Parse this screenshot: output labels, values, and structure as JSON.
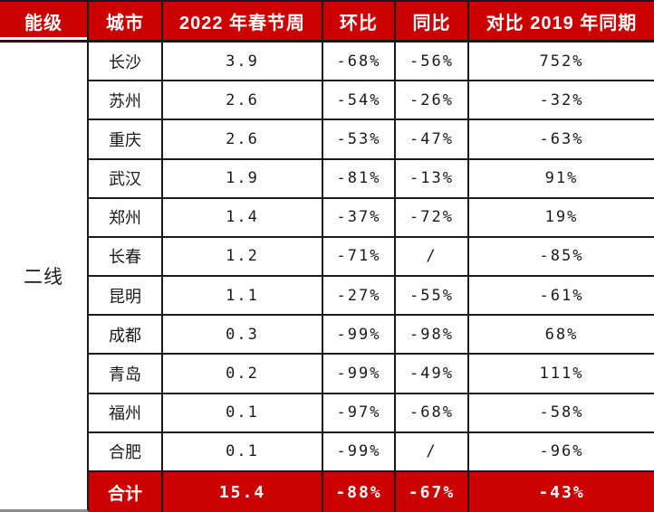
{
  "table": {
    "header": {
      "tier": "能级",
      "city": "城市",
      "value": "2022 年春节周",
      "mom": "环比",
      "yoy": "同比",
      "vs2019": "对比 2019 年同期"
    },
    "tier_label": "二线",
    "rows": [
      {
        "city": "长沙",
        "value": "3.9",
        "mom": "-68%",
        "yoy": "-56%",
        "vs2019": "752%"
      },
      {
        "city": "苏州",
        "value": "2.6",
        "mom": "-54%",
        "yoy": "-26%",
        "vs2019": "-32%"
      },
      {
        "city": "重庆",
        "value": "2.6",
        "mom": "-53%",
        "yoy": "-47%",
        "vs2019": "-63%"
      },
      {
        "city": "武汉",
        "value": "1.9",
        "mom": "-81%",
        "yoy": "-13%",
        "vs2019": "91%"
      },
      {
        "city": "郑州",
        "value": "1.4",
        "mom": "-37%",
        "yoy": "-72%",
        "vs2019": "19%"
      },
      {
        "city": "长春",
        "value": "1.2",
        "mom": "-71%",
        "yoy": "/",
        "vs2019": "-85%"
      },
      {
        "city": "昆明",
        "value": "1.1",
        "mom": "-27%",
        "yoy": "-55%",
        "vs2019": "-61%"
      },
      {
        "city": "成都",
        "value": "0.3",
        "mom": "-99%",
        "yoy": "-98%",
        "vs2019": "68%"
      },
      {
        "city": "青岛",
        "value": "0.2",
        "mom": "-99%",
        "yoy": "-49%",
        "vs2019": "111%"
      },
      {
        "city": "福州",
        "value": "0.1",
        "mom": "-97%",
        "yoy": "-68%",
        "vs2019": "-58%"
      },
      {
        "city": "合肥",
        "value": "0.1",
        "mom": "-99%",
        "yoy": "/",
        "vs2019": "-96%"
      }
    ],
    "total": {
      "label": "合计",
      "value": "15.4",
      "mom": "-88%",
      "yoy": "-67%",
      "vs2019": "-43%"
    }
  },
  "colors": {
    "accent_red": "#cc0000",
    "border_black": "#1a1a1a",
    "tier_bottom_gray": "#8c8c8c"
  },
  "chart_data": {
    "type": "table",
    "title": "",
    "columns": [
      "能级",
      "城市",
      "2022年春节周",
      "环比",
      "同比",
      "对比2019年同期"
    ],
    "tier": "二线",
    "rows": [
      [
        "长沙",
        3.9,
        "-68%",
        "-56%",
        "752%"
      ],
      [
        "苏州",
        2.6,
        "-54%",
        "-26%",
        "-32%"
      ],
      [
        "重庆",
        2.6,
        "-53%",
        "-47%",
        "-63%"
      ],
      [
        "武汉",
        1.9,
        "-81%",
        "-13%",
        "91%"
      ],
      [
        "郑州",
        1.4,
        "-37%",
        "-72%",
        "19%"
      ],
      [
        "长春",
        1.2,
        "-71%",
        "/",
        "-85%"
      ],
      [
        "昆明",
        1.1,
        "-27%",
        "-55%",
        "-61%"
      ],
      [
        "成都",
        0.3,
        "-99%",
        "-98%",
        "68%"
      ],
      [
        "青岛",
        0.2,
        "-99%",
        "-49%",
        "111%"
      ],
      [
        "福州",
        0.1,
        "-97%",
        "-68%",
        "-58%"
      ],
      [
        "合肥",
        0.1,
        "-99%",
        "/",
        "-96%"
      ]
    ],
    "total": [
      "合计",
      15.4,
      "-88%",
      "-67%",
      "-43%"
    ]
  }
}
